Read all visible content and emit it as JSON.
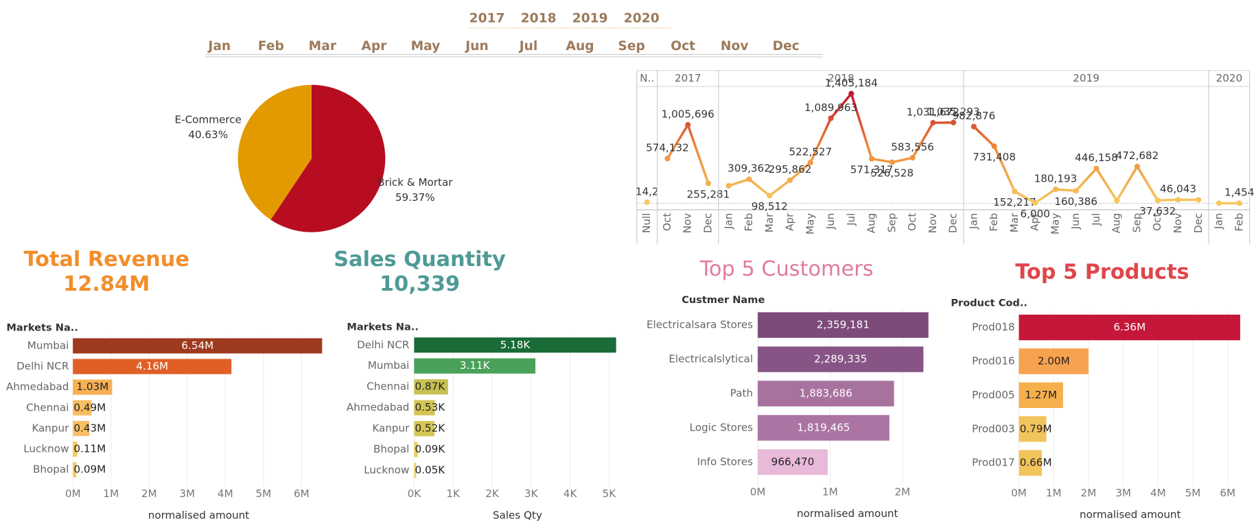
{
  "filters": {
    "years": [
      "2017",
      "2018",
      "2019",
      "2020"
    ],
    "months": [
      "Jan",
      "Feb",
      "Mar",
      "Apr",
      "May",
      "Jun",
      "Jul",
      "Aug",
      "Sep",
      "Oct",
      "Nov",
      "Dec"
    ]
  },
  "kpis": [
    {
      "title": "Total Revenue",
      "value": "12.84M",
      "color": "#f28e2b"
    },
    {
      "title": "Sales Quantity",
      "value": "10,339",
      "color": "#4e9a96"
    }
  ],
  "chart_data": [
    {
      "type": "pie",
      "categories": [
        "E-Commerce",
        "Brick & Mortar"
      ],
      "values": [
        40.63,
        59.37
      ],
      "value_labels": [
        "40.63%",
        "59.37%"
      ],
      "colors": [
        "#e39a00",
        "#b80d21"
      ]
    },
    {
      "type": "line",
      "colors": [
        "#f6c85f",
        "#ee8a3a",
        "#c0172f"
      ],
      "groups": [
        {
          "label": "N..",
          "categories": [
            "Null"
          ],
          "values": [
            14200
          ],
          "value_labels": [
            "14,2"
          ]
        },
        {
          "label": "2017",
          "categories": [
            "Oct",
            "Nov",
            "Dec"
          ],
          "values": [
            574132,
            1005696,
            255281
          ],
          "value_labels": [
            "574,132",
            "1,005,696",
            "255,281"
          ]
        },
        {
          "label": "2018",
          "categories": [
            "Jan",
            "Feb",
            "Mar",
            "Apr",
            "May",
            "Jun",
            "Jul",
            "Aug",
            "Sep",
            "Oct",
            "Nov",
            "Dec"
          ],
          "values": [
            225000,
            309362,
            98512,
            295862,
            522527,
            1089963,
            1405184,
            571317,
            526528,
            583556,
            1031672,
            1035293
          ],
          "value_labels": [
            null,
            "309,362",
            "98,512",
            "295,862",
            "522,527",
            "1,089,963",
            "1,405,184",
            "571,317",
            "526,528",
            "583,556",
            "1,031,672",
            "1,035,293"
          ]
        },
        {
          "label": "2019",
          "categories": [
            "Jan",
            "Feb",
            "Mar",
            "Apr",
            "May",
            "Jun",
            "Jul",
            "Aug",
            "Sep",
            "Oct",
            "Nov",
            "Dec"
          ],
          "values": [
            982876,
            731408,
            152217,
            6000,
            180193,
            160386,
            446158,
            35000,
            472682,
            37632,
            46043,
            45000
          ],
          "value_labels": [
            "982,876",
            "731,408",
            "152,217",
            "6,000",
            "180,193",
            "160,386",
            "446,158",
            null,
            "472,682",
            "37,632",
            "46,043",
            null
          ]
        },
        {
          "label": "2020",
          "categories": [
            "Jan",
            "Feb"
          ],
          "values": [
            1000,
            1454
          ],
          "value_labels": [
            null,
            "1,454"
          ]
        }
      ]
    },
    {
      "type": "hbar",
      "header": "Markets Na..",
      "x_label": "normalised amount",
      "categories": [
        "Mumbai",
        "Delhi NCR",
        "Ahmedabad",
        "Chennai",
        "Kanpur",
        "Lucknow",
        "Bhopal"
      ],
      "values": [
        6540000,
        4160000,
        1030000,
        490000,
        430000,
        110000,
        90000
      ],
      "value_labels": [
        "6.54M",
        "4.16M",
        "1.03M",
        "0.49M",
        "0.43M",
        "0.11M",
        "0.09M"
      ],
      "colors": [
        "#9e3a1f",
        "#e05f26",
        "#f8b055",
        "#f9bd62",
        "#fac066",
        "#f6c95f",
        "#f6ca60"
      ],
      "xlim": [
        0,
        6600000
      ],
      "xticks": [
        {
          "value": 0,
          "label": "0M"
        },
        {
          "value": 1000000,
          "label": "1M"
        },
        {
          "value": 2000000,
          "label": "2M"
        },
        {
          "value": 3000000,
          "label": "3M"
        },
        {
          "value": 4000000,
          "label": "4M"
        },
        {
          "value": 5000000,
          "label": "5M"
        },
        {
          "value": 6000000,
          "label": "6M"
        }
      ]
    },
    {
      "type": "hbar",
      "header": "Markets Na..",
      "x_label": "Sales Qty",
      "categories": [
        "Delhi NCR",
        "Mumbai",
        "Chennai",
        "Ahmedabad",
        "Kanpur",
        "Bhopal",
        "Lucknow"
      ],
      "values": [
        5180,
        3110,
        870,
        530,
        520,
        90,
        50
      ],
      "value_labels": [
        "5.18K",
        "3.11K",
        "0.87K",
        "0.53K",
        "0.52K",
        "0.09K",
        "0.05K"
      ],
      "colors": [
        "#196b37",
        "#4aa25a",
        "#c7c152",
        "#d4c452",
        "#d6c656",
        "#f1cf55",
        "#f4d15b"
      ],
      "xlim": [
        0,
        5300
      ],
      "xticks": [
        {
          "value": 0,
          "label": "0K"
        },
        {
          "value": 1000,
          "label": "1K"
        },
        {
          "value": 2000,
          "label": "2K"
        },
        {
          "value": 3000,
          "label": "3K"
        },
        {
          "value": 4000,
          "label": "4K"
        },
        {
          "value": 5000,
          "label": "5K"
        }
      ]
    },
    {
      "type": "hbar",
      "title": "Top 5 Customers",
      "title_color": "#e07aa0",
      "header": "Custmer Name",
      "x_label": "normalised amount",
      "categories": [
        "Electricalsara Stores",
        "Electricalslytical",
        "Path",
        "Logic Stores",
        "Info Stores"
      ],
      "values": [
        2359181,
        2289335,
        1883686,
        1819465,
        966470
      ],
      "value_labels": [
        "2,359,181",
        "2,289,335",
        "1,883,686",
        "1,819,465",
        "966,470"
      ],
      "colors": [
        "#7d4a7a",
        "#875485",
        "#a8729f",
        "#ab74a2",
        "#e8b9d8"
      ],
      "xlim": [
        0,
        2480000
      ],
      "xticks": [
        {
          "value": 0,
          "label": "0M"
        },
        {
          "value": 1000000,
          "label": "1M"
        },
        {
          "value": 2000000,
          "label": "2M"
        }
      ]
    },
    {
      "type": "hbar",
      "title": "Top 5 Products",
      "title_color": "#e0454a",
      "header": "Product Cod..",
      "x_label": "normalised amount",
      "categories": [
        "Prod018",
        "Prod016",
        "Prod005",
        "Prod003",
        "Prod017"
      ],
      "values": [
        6360000,
        2000000,
        1270000,
        790000,
        660000
      ],
      "value_labels": [
        "6.36M",
        "2.00M",
        "1.27M",
        "0.79M",
        "0.66M"
      ],
      "colors": [
        "#c4173a",
        "#f7a24e",
        "#f5b04c",
        "#f2c45c",
        "#f2c45c"
      ],
      "xlim": [
        0,
        6400000
      ],
      "xticks": [
        {
          "value": 0,
          "label": "0M"
        },
        {
          "value": 1000000,
          "label": "1M"
        },
        {
          "value": 2000000,
          "label": "2M"
        },
        {
          "value": 3000000,
          "label": "3M"
        },
        {
          "value": 4000000,
          "label": "4M"
        },
        {
          "value": 5000000,
          "label": "5M"
        },
        {
          "value": 6000000,
          "label": "6M"
        }
      ]
    }
  ]
}
